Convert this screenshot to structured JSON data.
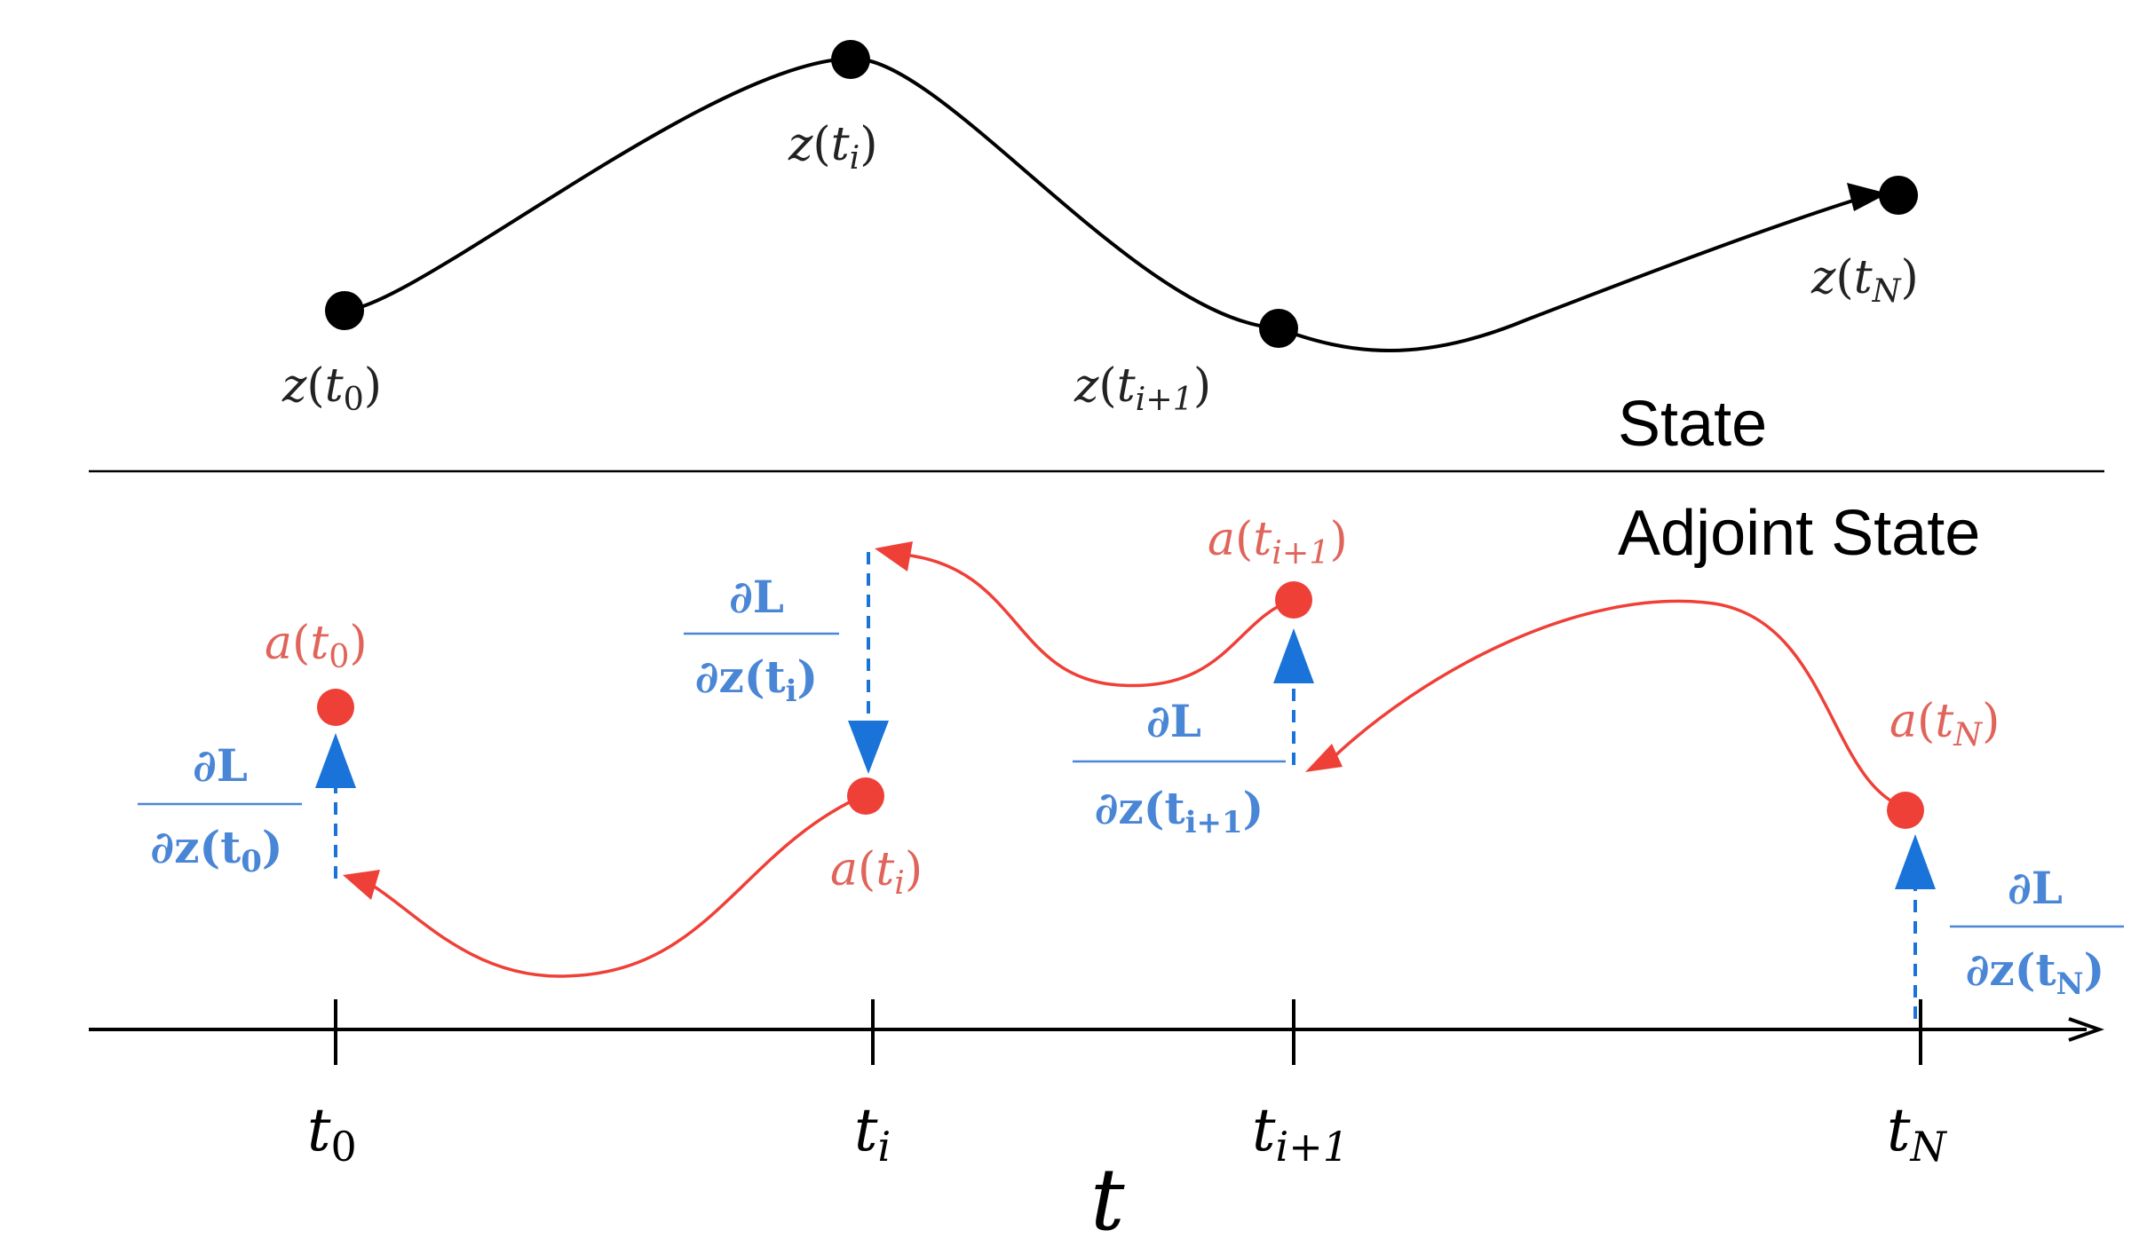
{
  "colors": {
    "state": "#000000",
    "adjoint": "#ef4038",
    "adjoint_label": "#e0645a",
    "gradient": "#1a73d9",
    "gradient_label": "#4a86d6"
  },
  "section_labels": {
    "state": "State",
    "adjoint": "Adjoint State"
  },
  "state_points": [
    {
      "fn": "z",
      "var": "t",
      "sub": "0"
    },
    {
      "fn": "z",
      "var": "t",
      "sub": "i"
    },
    {
      "fn": "z",
      "var": "t",
      "sub": "i+1"
    },
    {
      "fn": "z",
      "var": "t",
      "sub": "N"
    }
  ],
  "adjoint_points": [
    {
      "fn": "a",
      "var": "t",
      "sub": "0"
    },
    {
      "fn": "a",
      "var": "t",
      "sub": "i"
    },
    {
      "fn": "a",
      "var": "t",
      "sub": "i+1"
    },
    {
      "fn": "a",
      "var": "t",
      "sub": "N"
    }
  ],
  "gradients": [
    {
      "num": "∂L",
      "den_pre": "∂z(t",
      "sub": "0",
      "den_post": ")"
    },
    {
      "num": "∂L",
      "den_pre": "∂z(t",
      "sub": "i",
      "den_post": ")"
    },
    {
      "num": "∂L",
      "den_pre": "∂z(t",
      "sub": "i+1",
      "den_post": ")"
    },
    {
      "num": "∂L",
      "den_pre": "∂z(t",
      "sub": "N",
      "den_post": ")"
    }
  ],
  "axis": {
    "label": "t",
    "ticks": [
      {
        "var": "t",
        "sub": "0"
      },
      {
        "var": "t",
        "sub": "i"
      },
      {
        "var": "t",
        "sub": "i+1"
      },
      {
        "var": "t",
        "sub": "N"
      }
    ]
  }
}
